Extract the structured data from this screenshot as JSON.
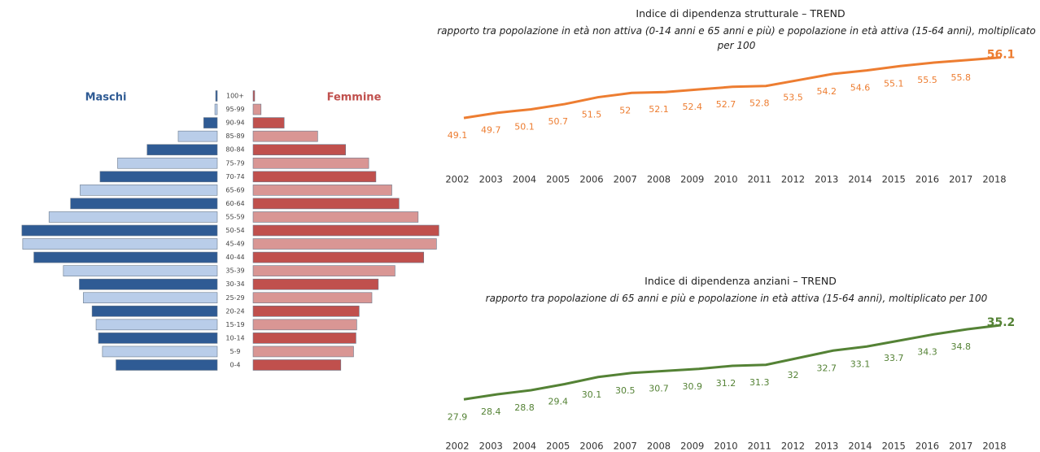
{
  "chart_data": [
    {
      "type": "pyramid",
      "categories": [
        "100+",
        "95-99",
        "90-94",
        "85-89",
        "80-84",
        "75-79",
        "70-74",
        "65-69",
        "60-64",
        "55-59",
        "50-54",
        "45-49",
        "40-44",
        "35-39",
        "30-34",
        "25-29",
        "20-24",
        "15-19",
        "10-14",
        "5-9",
        "0-4"
      ],
      "series": [
        {
          "name": "Maschi",
          "color": "#2f5b94",
          "alt_color": "#b9cde9",
          "label_color": "#2f5b94",
          "values": [
            0.04,
            0.06,
            0.34,
            0.98,
            1.76,
            2.5,
            2.94,
            3.44,
            3.68,
            4.22,
            4.9,
            4.88,
            4.6,
            3.86,
            3.46,
            3.36,
            3.14,
            3.04,
            2.98,
            2.88,
            2.54
          ]
        },
        {
          "name": "Femmine",
          "color": "#c0504d",
          "alt_color": "#d99694",
          "label_color": "#c0504d",
          "values": [
            0.04,
            0.2,
            0.78,
            1.62,
            2.32,
            2.9,
            3.08,
            3.48,
            3.66,
            4.14,
            4.66,
            4.6,
            4.28,
            3.56,
            3.14,
            2.98,
            2.66,
            2.6,
            2.58,
            2.52,
            2.2
          ]
        }
      ],
      "xlim": [
        0,
        5
      ]
    },
    {
      "type": "line",
      "title": "Indice di dipendenza strutturale  – TREND",
      "subtitle": "rapporto tra popolazione in età non attiva (0-14 anni e 65 anni e più) e popolazione in età attiva (15-64 anni), moltiplicato per 100",
      "categories": [
        "2002",
        "2003",
        "2004",
        "2005",
        "2006",
        "2007",
        "2008",
        "2009",
        "2010",
        "2011",
        "2012",
        "2013",
        "2014",
        "2015",
        "2016",
        "2017",
        "2018"
      ],
      "values": [
        49.1,
        49.7,
        50.1,
        50.7,
        51.5,
        52.0,
        52.1,
        52.4,
        52.7,
        52.8,
        53.5,
        54.2,
        54.6,
        55.1,
        55.5,
        55.8,
        56.1
      ],
      "color": "#ed7d31",
      "ylim": [
        47.7,
        57.1
      ]
    },
    {
      "type": "line",
      "title": "Indice di dipendenza anziani  – TREND",
      "subtitle": "rapporto tra popolazione di 65 anni e più e popolazione in età attiva (15-64 anni), moltiplicato per 100",
      "categories": [
        "2002",
        "2003",
        "2004",
        "2005",
        "2006",
        "2007",
        "2008",
        "2009",
        "2010",
        "2011",
        "2012",
        "2013",
        "2014",
        "2015",
        "2016",
        "2017",
        "2018"
      ],
      "values": [
        27.9,
        28.4,
        28.8,
        29.4,
        30.1,
        30.5,
        30.7,
        30.9,
        31.2,
        31.3,
        32.0,
        32.7,
        33.1,
        33.7,
        34.3,
        34.8,
        35.2
      ],
      "color": "#548235",
      "ylim": [
        27.2,
        36.8
      ]
    }
  ]
}
